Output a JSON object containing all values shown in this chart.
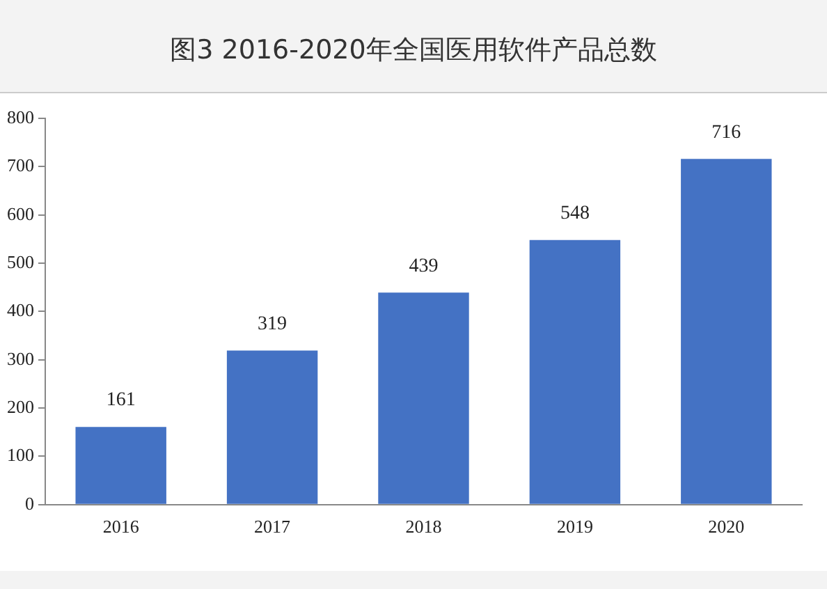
{
  "chart_data": {
    "type": "bar",
    "title": "图3  2016-2020年全国医用软件产品总数",
    "categories": [
      "2016",
      "2017",
      "2018",
      "2019",
      "2020"
    ],
    "values": [
      161,
      319,
      439,
      548,
      716
    ],
    "color": "#4472c4",
    "ylim": [
      0,
      800
    ],
    "yticks": [
      0,
      100,
      200,
      300,
      400,
      500,
      600,
      700,
      800
    ],
    "grid": false,
    "data_labels": true
  }
}
